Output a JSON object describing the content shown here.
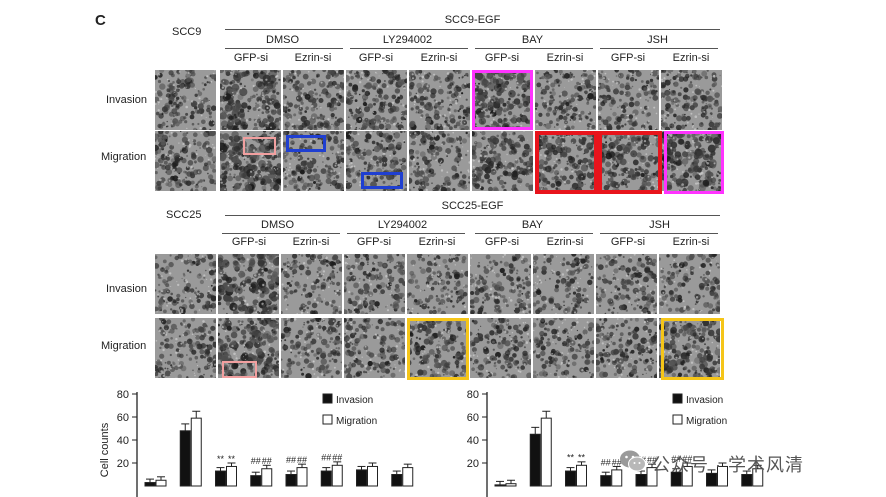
{
  "panel_letter": "C",
  "scc9": {
    "cell_line": "SCC9",
    "group_title": "SCC9-EGF",
    "treatments": [
      "DMSO",
      "LY294002",
      "BAY",
      "JSH"
    ],
    "sirnas": [
      "GFP-si",
      "Ezrin-si",
      "GFP-si",
      "Ezrin-si",
      "GFP-si",
      "Ezrin-si",
      "GFP-si",
      "Ezrin-si"
    ],
    "rows": [
      "Invasion",
      "Migration"
    ]
  },
  "scc25": {
    "cell_line": "SCC25",
    "group_title": "SCC25-EGF",
    "treatments": [
      "DMSO",
      "LY294002",
      "BAY",
      "JSH"
    ],
    "sirnas": [
      "GFP-si",
      "Ezrin-si",
      "GFP-si",
      "Ezrin-si",
      "GFP-si",
      "Ezrin-si",
      "GFP-si",
      "Ezrin-si"
    ],
    "rows": [
      "Invasion",
      "Migration"
    ]
  },
  "highlight_colors": {
    "magenta": "#ff33ff",
    "red": "#e8141c",
    "blue": "#1f3fd1",
    "pink": "#f2a0a0",
    "yellow": "#f5c518"
  },
  "chart_data": [
    {
      "type": "bar",
      "title": "",
      "xlabel": "",
      "ylabel": "Cell counts",
      "ylim": [
        0,
        80
      ],
      "yticks": [
        "80",
        "60",
        "40",
        "20"
      ],
      "legend_position": "top-right",
      "series": [
        {
          "name": "Invasion",
          "color": "#111111",
          "values": [
            3,
            48,
            13,
            9,
            10,
            13,
            14,
            10
          ]
        },
        {
          "name": "Migration",
          "color": "#ffffff",
          "values": [
            5,
            59,
            17,
            15,
            16,
            18,
            17,
            16
          ]
        }
      ],
      "annotations": [
        "**",
        "**",
        "##",
        "##",
        "##",
        "##",
        "##",
        "##"
      ]
    },
    {
      "type": "bar",
      "title": "",
      "xlabel": "",
      "ylabel": "",
      "ylim": [
        0,
        80
      ],
      "yticks": [
        "80",
        "60",
        "40",
        "20"
      ],
      "legend_position": "top-right",
      "series": [
        {
          "name": "Invasion",
          "color": "#111111",
          "values": [
            1,
            45,
            13,
            9,
            10,
            12,
            11,
            10
          ]
        },
        {
          "name": "Migration",
          "color": "#ffffff",
          "values": [
            2,
            59,
            18,
            14,
            16,
            17,
            17,
            15
          ]
        }
      ],
      "annotations": [
        "**",
        "**",
        "##",
        "##",
        "##",
        "##",
        "##",
        "##"
      ]
    }
  ],
  "watermark": {
    "text": "公众号 · 学术风清"
  }
}
